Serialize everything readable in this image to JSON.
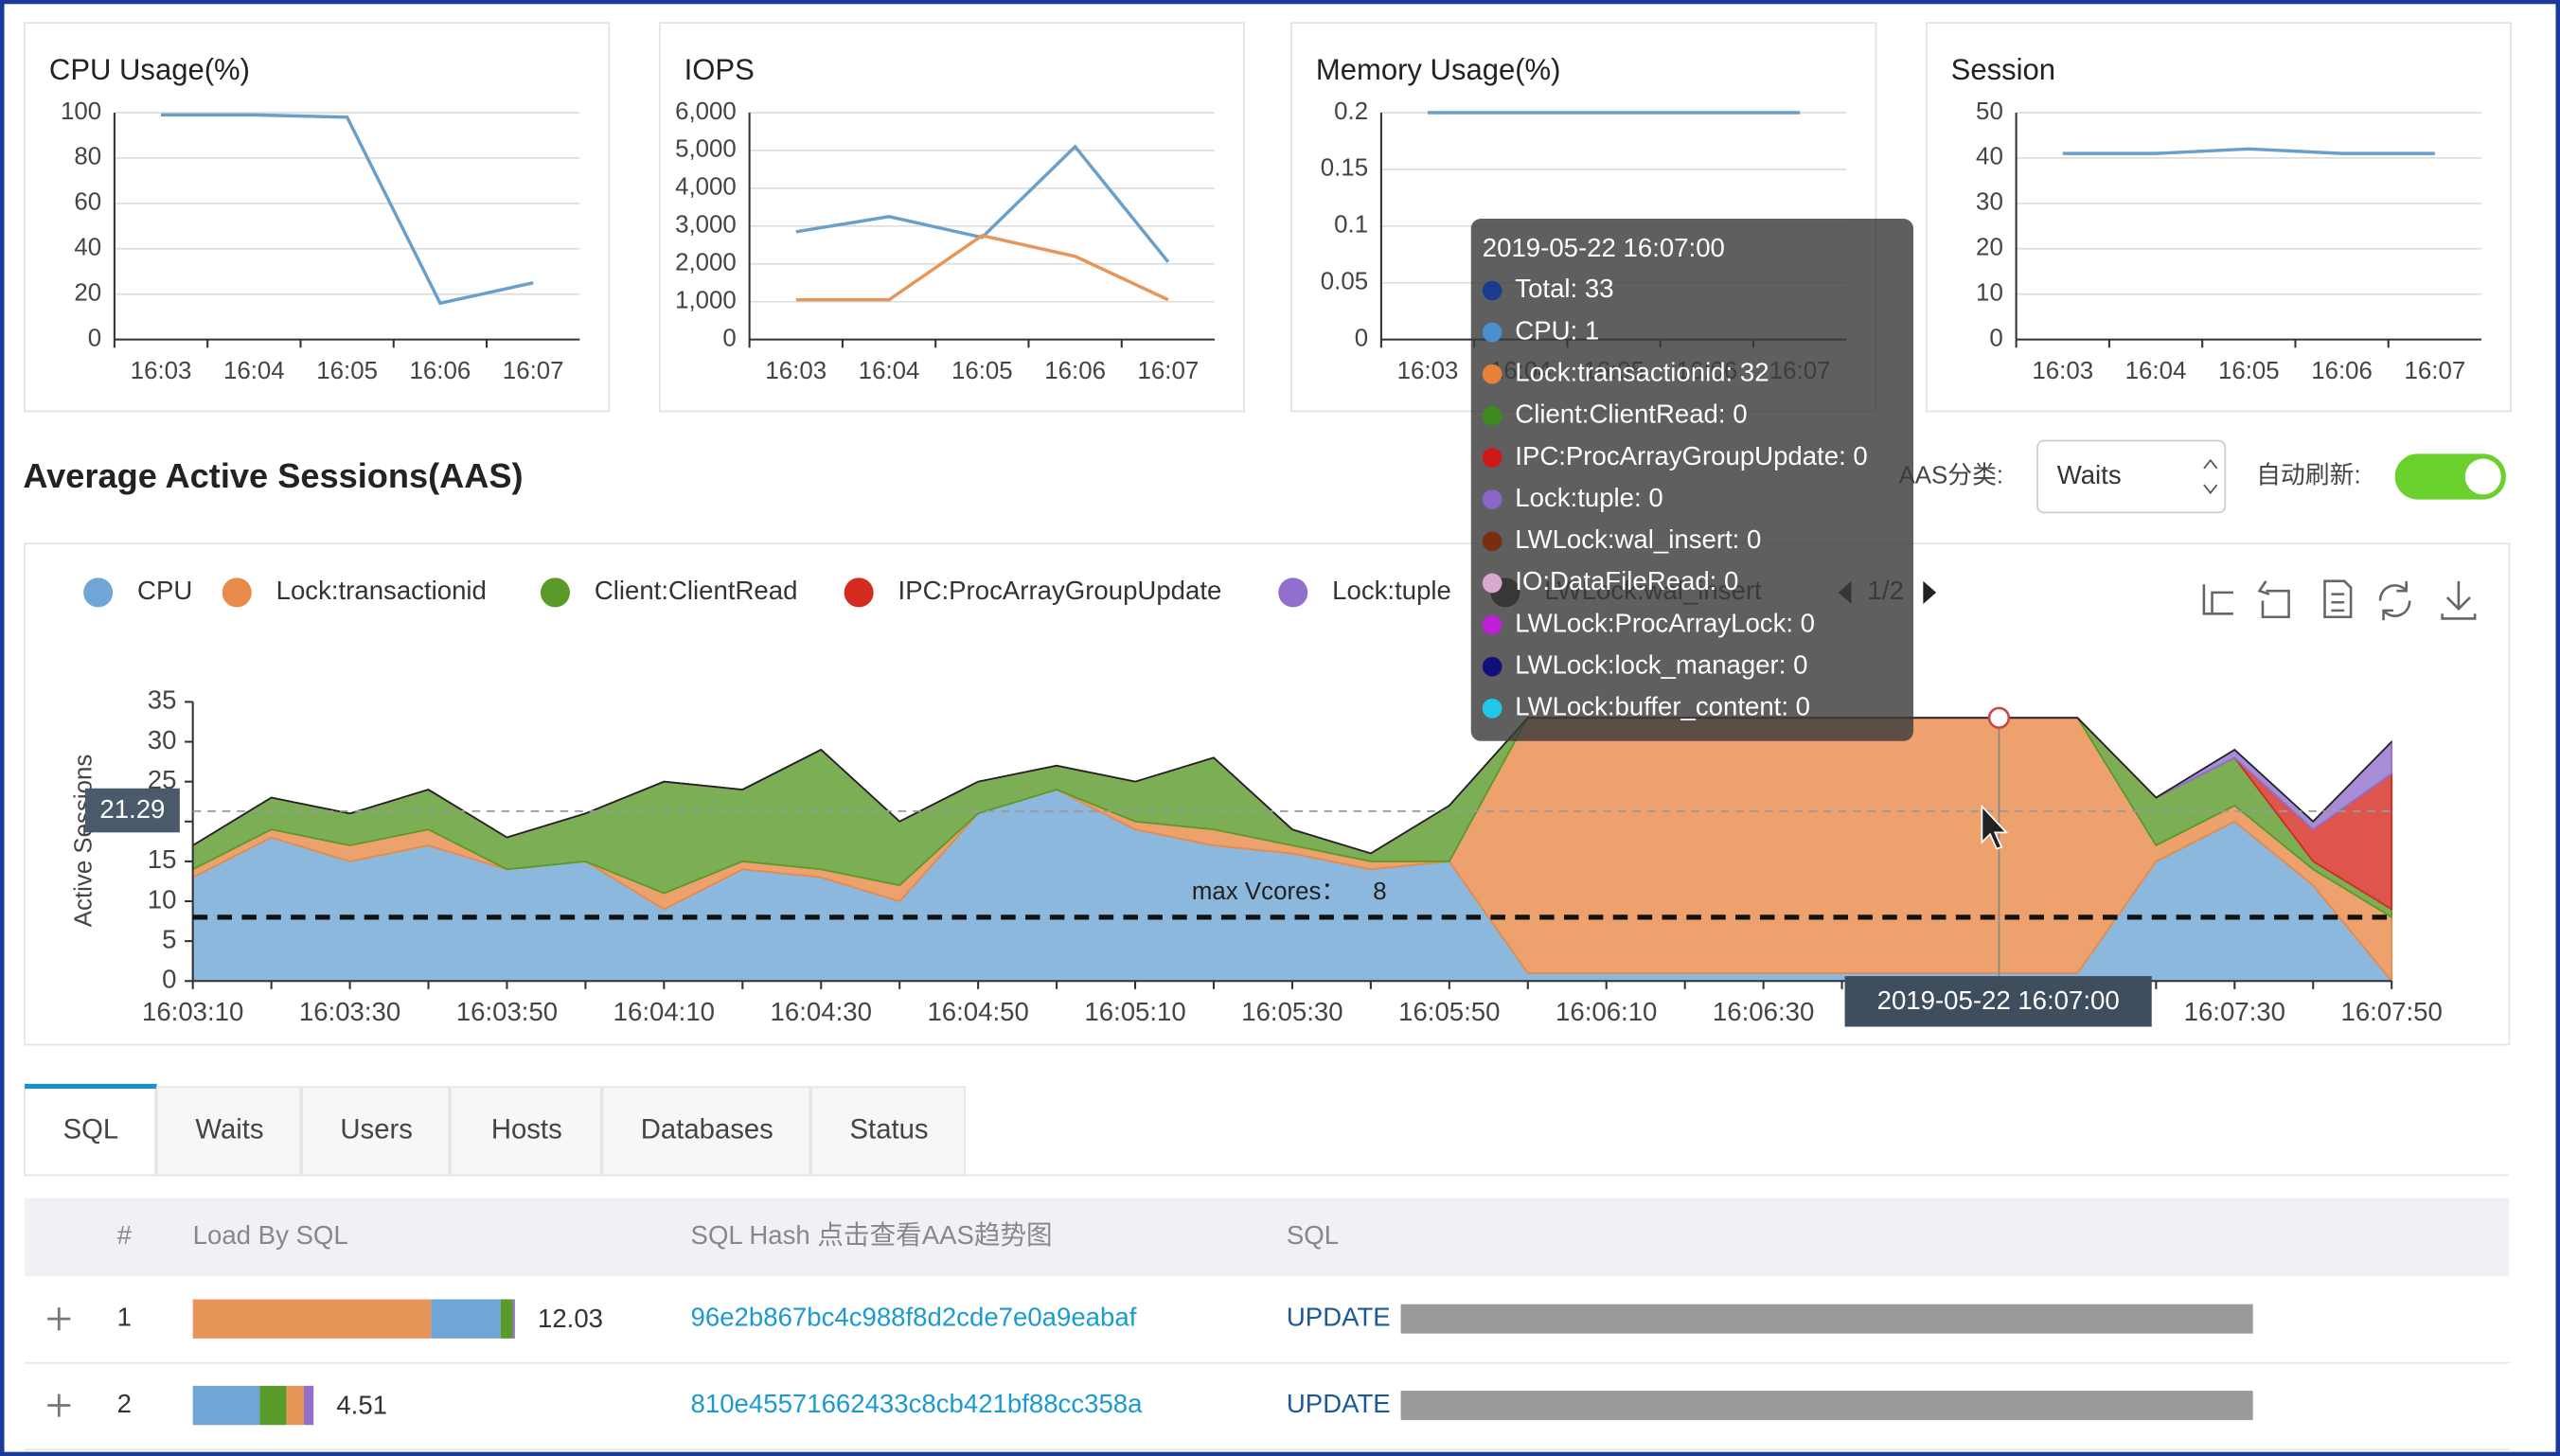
{
  "panels": [
    {
      "title": "CPU Usage(%)",
      "categories": [
        "16:03",
        "16:04",
        "16:05",
        "16:06",
        "16:07"
      ],
      "series": [
        {
          "color": "#6a9fca",
          "values": [
            99,
            99,
            98,
            16,
            25
          ]
        }
      ],
      "ylim": [
        0,
        100
      ],
      "yticks": [
        0,
        20,
        40,
        60,
        80,
        100
      ]
    },
    {
      "title": "IOPS",
      "categories": [
        "16:03",
        "16:04",
        "16:05",
        "16:06",
        "16:07"
      ],
      "series": [
        {
          "color": "#6a9fca",
          "values": [
            2850,
            3250,
            2700,
            5100,
            2050
          ]
        },
        {
          "color": "#e8955a",
          "values": [
            1050,
            1050,
            2750,
            2200,
            1050
          ]
        }
      ],
      "ylim": [
        0,
        6000
      ],
      "yticks": [
        0,
        {
          "value": 1000,
          "label": "1,000"
        },
        {
          "value": 2000,
          "label": "2,000"
        },
        {
          "value": 3000,
          "label": "3,000"
        },
        {
          "value": 4000,
          "label": "4,000"
        },
        {
          "value": 5000,
          "label": "5,000"
        },
        {
          "value": 6000,
          "label": "6,000"
        }
      ]
    },
    {
      "title": "Memory Usage(%)",
      "categories": [
        "16:03",
        "16:04",
        "16:05",
        "16:06",
        "16:07"
      ],
      "series": [
        {
          "color": "#6a9fca",
          "values": [
            0.2,
            0.2,
            0.2,
            0.2,
            0.2
          ]
        }
      ],
      "ylim": [
        0,
        0.2
      ],
      "yticks": [
        0,
        0.05,
        0.1,
        0.15,
        0.2
      ]
    },
    {
      "title": "Session",
      "categories": [
        "16:03",
        "16:04",
        "16:05",
        "16:06",
        "16:07"
      ],
      "series": [
        {
          "color": "#6a9fca",
          "values": [
            41,
            41,
            42,
            41,
            41
          ]
        }
      ],
      "ylim": [
        0,
        50
      ],
      "yticks": [
        0,
        10,
        20,
        30,
        40,
        50
      ]
    }
  ],
  "aas": {
    "title": "Average Active Sessions(AAS)",
    "type": "stacked-area",
    "ylabel": "Active Sessions",
    "categories": [
      "16:03:10",
      null,
      "16:03:30",
      null,
      "16:03:50",
      null,
      "16:04:10",
      null,
      "16:04:30",
      null,
      "16:04:50",
      null,
      "16:05:10",
      null,
      "16:05:30",
      null,
      "16:05:50",
      null,
      "16:06:10",
      null,
      "16:06:30",
      null,
      "16:06:50",
      null,
      "16:07:10",
      null,
      "16:07:30",
      null,
      "16:07:50"
    ],
    "series": [
      {
        "name": "CPU",
        "color": "#6fa6d6",
        "values": [
          13,
          18,
          15,
          17,
          14,
          15,
          9,
          14,
          13,
          10,
          21,
          24,
          19,
          17,
          16,
          14,
          15,
          1,
          1,
          1,
          1,
          1,
          1,
          1,
          1,
          15,
          20,
          12,
          0
        ]
      },
      {
        "name": "Lock:transactionid",
        "color": "#e88a48",
        "values": [
          1,
          1,
          2,
          2,
          0,
          0,
          2,
          1,
          1,
          2,
          0,
          0,
          1,
          2,
          1,
          1,
          0,
          32,
          32,
          32,
          32,
          32,
          32,
          32,
          32,
          2,
          2,
          2,
          8
        ]
      },
      {
        "name": "Client:ClientRead",
        "color": "#5a9a2a",
        "values": [
          3,
          4,
          4,
          5,
          4,
          6,
          14,
          9,
          15,
          8,
          4,
          3,
          5,
          9,
          2,
          1,
          7,
          0,
          0,
          0,
          0,
          0,
          0,
          0,
          0,
          6,
          6,
          1,
          1
        ]
      },
      {
        "name": "IPC:ProcArrayGroupUpdate",
        "color": "#d42a20",
        "values": [
          0,
          0,
          0,
          0,
          0,
          0,
          0,
          0,
          0,
          0,
          0,
          0,
          0,
          0,
          0,
          0,
          0,
          0,
          0,
          0,
          0,
          0,
          0,
          0,
          0,
          0,
          0,
          4,
          17
        ]
      },
      {
        "name": "Lock:tuple",
        "color": "#9070cc",
        "values": [
          0,
          0,
          0,
          0,
          0,
          0,
          0,
          0,
          0,
          0,
          0,
          0,
          0,
          0,
          0,
          0,
          0,
          0,
          0,
          0,
          0,
          0,
          0,
          0,
          0,
          0,
          1,
          1,
          4
        ]
      },
      {
        "name": "LWLock:wal_insert",
        "color": "#222222",
        "values": [
          0,
          0,
          0,
          0,
          0,
          0,
          0,
          0,
          0,
          0,
          0,
          0,
          0,
          0,
          0,
          0,
          0,
          0,
          0,
          0,
          0,
          0,
          0,
          0,
          0,
          0,
          0,
          0,
          0
        ]
      }
    ],
    "ylim": [
      0,
      35
    ],
    "yticks": [
      0,
      5,
      10,
      15,
      20,
      25,
      30,
      35
    ],
    "avg": 21.29,
    "max_vcores": {
      "label": "max Vcores：",
      "value": 8
    },
    "legend_page": "1/2",
    "hover_label": "2019-05-22 16:07:00",
    "tooltip": {
      "title": "2019-05-22 16:07:00",
      "items": [
        {
          "text": "Total: 33",
          "color": "#1b3b8f"
        },
        {
          "text": "CPU: 1",
          "color": "#4a8fd0"
        },
        {
          "text": "Lock:transactionid: 32",
          "color": "#e8803a"
        },
        {
          "text": "Client:ClientRead: 0",
          "color": "#3d8a1e"
        },
        {
          "text": "IPC:ProcArrayGroupUpdate: 0",
          "color": "#d01818"
        },
        {
          "text": "Lock:tuple: 0",
          "color": "#8a66c8"
        },
        {
          "text": "LWLock:wal_insert: 0",
          "color": "#7a2e10"
        },
        {
          "text": "IO:DataFileRead: 0",
          "color": "#d8a8d0"
        },
        {
          "text": "LWLock:ProcArrayLock: 0",
          "color": "#c020d8"
        },
        {
          "text": "LWLock:lock_manager: 0",
          "color": "#10107a"
        },
        {
          "text": "LWLock:buffer_content: 0",
          "color": "#20c8e8"
        }
      ]
    }
  },
  "controls": {
    "category_label": "AAS分类:",
    "category_value": "Waits",
    "refresh_label": "自动刷新:"
  },
  "tabs": [
    "SQL",
    "Waits",
    "Users",
    "Hosts",
    "Databases",
    "Status"
  ],
  "table": {
    "headers": [
      "#",
      "Load By SQL",
      "SQL Hash 点击查看AAS趋势图",
      "SQL"
    ],
    "rows": [
      {
        "index": "1",
        "load": 12.03,
        "parts": [
          {
            "color": "#e8955a",
            "value": 8.9
          },
          {
            "color": "#6fa6d6",
            "value": 2.6
          },
          {
            "color": "#5a9a2a",
            "value": 0.45
          },
          {
            "color": "#9070cc",
            "value": 0.08
          }
        ],
        "hash": "96e2b867bc4c988f8d2cde7e0a9eabaf",
        "sql": "UPDATE"
      },
      {
        "index": "2",
        "load": 4.51,
        "parts": [
          {
            "color": "#6fa6d6",
            "value": 2.5
          },
          {
            "color": "#5a9a2a",
            "value": 1.0
          },
          {
            "color": "#e8955a",
            "value": 0.65
          },
          {
            "color": "#9070cc",
            "value": 0.36
          }
        ],
        "hash": "810e45571662433c8cb421bf88cc358a",
        "sql": "UPDATE"
      }
    ]
  }
}
